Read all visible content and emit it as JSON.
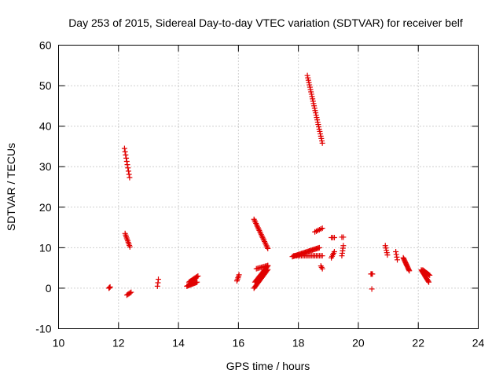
{
  "chart_data": {
    "type": "scatter",
    "title": "Day 253 of 2015, Sidereal Day-to-day VTEC variation (SDTVAR) for receiver belf",
    "xlabel": "GPS time / hours",
    "ylabel": "SDTVAR / TECUs",
    "xlim": [
      10,
      24
    ],
    "ylim": [
      -10,
      60
    ],
    "xticks": [
      10,
      12,
      14,
      16,
      18,
      20,
      22,
      24
    ],
    "yticks": [
      -10,
      0,
      10,
      20,
      30,
      40,
      50,
      60
    ],
    "xtick_labels": [
      "10",
      "12",
      "14",
      "16",
      "18",
      "20",
      "22",
      "24"
    ],
    "ytick_labels": [
      "-10",
      "0",
      "10",
      "20",
      "30",
      "40",
      "50",
      "60"
    ],
    "grid": true,
    "marker": "+",
    "color": "#e00000",
    "segments": [
      {
        "x0": 11.68,
        "x1": 11.72,
        "y0": 0.0,
        "y1": 0.3,
        "n": 3
      },
      {
        "x0": 12.2,
        "x1": 12.37,
        "y0": 34.5,
        "y1": 27.3,
        "n": 10
      },
      {
        "x0": 12.22,
        "x1": 12.38,
        "y0": 13.5,
        "y1": 10.2,
        "n": 10
      },
      {
        "x0": 12.28,
        "x1": 12.42,
        "y0": -1.7,
        "y1": -1.0,
        "n": 5
      },
      {
        "x0": 13.3,
        "x1": 13.33,
        "y0": 0.5,
        "y1": 2.2,
        "n": 3
      },
      {
        "x0": 14.28,
        "x1": 14.62,
        "y0": 0.5,
        "y1": 1.5,
        "n": 14
      },
      {
        "x0": 14.35,
        "x1": 14.65,
        "y0": 1.5,
        "y1": 3.0,
        "n": 10
      },
      {
        "x0": 15.95,
        "x1": 16.02,
        "y0": 1.8,
        "y1": 3.3,
        "n": 5
      },
      {
        "x0": 16.52,
        "x1": 16.98,
        "y0": 17.0,
        "y1": 9.8,
        "n": 22
      },
      {
        "x0": 16.52,
        "x1": 16.98,
        "y0": 0.0,
        "y1": 4.6,
        "n": 20
      },
      {
        "x0": 16.55,
        "x1": 16.98,
        "y0": 1.5,
        "y1": 5.5,
        "n": 18
      },
      {
        "x0": 16.6,
        "x1": 16.98,
        "y0": 4.8,
        "y1": 5.6,
        "n": 10
      },
      {
        "x0": 17.8,
        "x1": 18.7,
        "y0": 7.8,
        "y1": 10.0,
        "n": 28
      },
      {
        "x0": 17.85,
        "x1": 18.8,
        "y0": 8.0,
        "y1": 8.0,
        "n": 20
      },
      {
        "x0": 18.3,
        "x1": 18.8,
        "y0": 52.5,
        "y1": 35.8,
        "n": 30
      },
      {
        "x0": 18.55,
        "x1": 18.8,
        "y0": 13.9,
        "y1": 14.8,
        "n": 6
      },
      {
        "x0": 18.75,
        "x1": 18.8,
        "y0": 5.5,
        "y1": 4.8,
        "n": 3
      },
      {
        "x0": 19.1,
        "x1": 19.2,
        "y0": 12.5,
        "y1": 12.5,
        "n": 3
      },
      {
        "x0": 19.1,
        "x1": 19.2,
        "y0": 7.5,
        "y1": 9.0,
        "n": 5
      },
      {
        "x0": 19.45,
        "x1": 19.5,
        "y0": 12.6,
        "y1": 12.6,
        "n": 2
      },
      {
        "x0": 19.45,
        "x1": 19.5,
        "y0": 8.0,
        "y1": 10.5,
        "n": 5
      },
      {
        "x0": 20.42,
        "x1": 20.47,
        "y0": 3.5,
        "y1": 3.5,
        "n": 3
      },
      {
        "x0": 20.45,
        "x1": 20.45,
        "y0": -0.2,
        "y1": -0.2,
        "n": 1
      },
      {
        "x0": 20.9,
        "x1": 20.97,
        "y0": 10.5,
        "y1": 8.2,
        "n": 5
      },
      {
        "x0": 21.25,
        "x1": 21.3,
        "y0": 9.0,
        "y1": 7.0,
        "n": 4
      },
      {
        "x0": 21.5,
        "x1": 21.7,
        "y0": 7.5,
        "y1": 4.3,
        "n": 14
      },
      {
        "x0": 22.1,
        "x1": 22.35,
        "y0": 4.5,
        "y1": 1.5,
        "n": 14
      },
      {
        "x0": 22.15,
        "x1": 22.38,
        "y0": 4.5,
        "y1": 3.2,
        "n": 8
      }
    ]
  }
}
